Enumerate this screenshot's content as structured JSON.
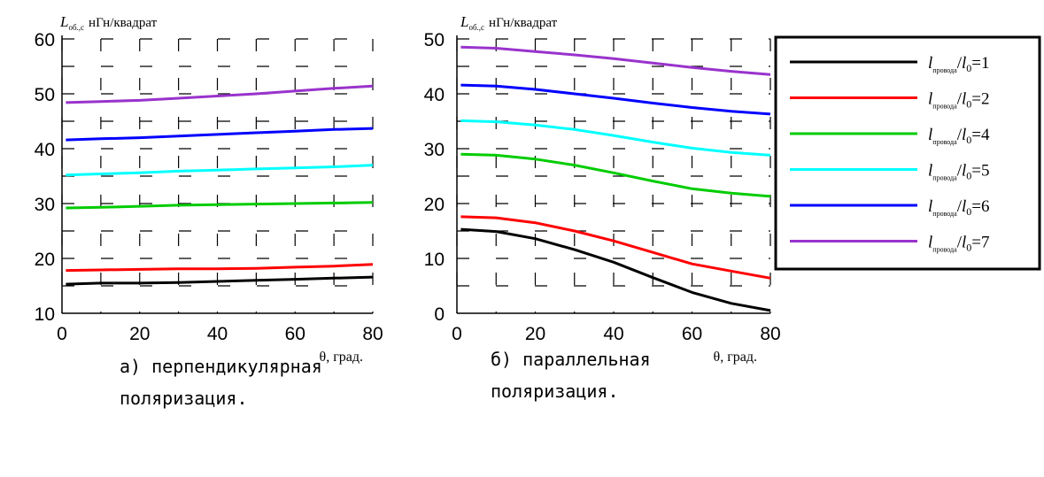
{
  "chart_data": [
    {
      "type": "line",
      "panel_label": "а)",
      "ylabel_symbol": "L",
      "ylabel_subscript": "об.,с",
      "ylabel_units": "нГн/квадрат",
      "xlabel": "θ, град.",
      "xlim": [
        0,
        80
      ],
      "ylim": [
        10,
        60
      ],
      "xticks": [
        "0",
        "20",
        "40",
        "60",
        "80"
      ],
      "yticks": [
        "10",
        "20",
        "30",
        "40",
        "50",
        "60"
      ],
      "grid": true,
      "caption_line1": "а) перпендикулярная",
      "caption_line2": "поляризация.",
      "x": [
        1,
        10,
        20,
        30,
        40,
        50,
        60,
        70,
        80
      ],
      "series": [
        {
          "ratio": "1",
          "color": "#000000",
          "values": [
            15.3,
            15.5,
            15.5,
            15.6,
            15.8,
            16.0,
            16.2,
            16.4,
            16.6
          ]
        },
        {
          "ratio": "2",
          "color": "#ff0000",
          "values": [
            17.8,
            17.9,
            18.0,
            18.1,
            18.1,
            18.2,
            18.4,
            18.6,
            18.9
          ]
        },
        {
          "ratio": "4",
          "color": "#00cc00",
          "values": [
            29.2,
            29.3,
            29.5,
            29.7,
            29.8,
            29.9,
            30.0,
            30.1,
            30.2
          ]
        },
        {
          "ratio": "5",
          "color": "#00ffff",
          "values": [
            35.2,
            35.4,
            35.6,
            35.9,
            36.1,
            36.3,
            36.5,
            36.7,
            37.0
          ]
        },
        {
          "ratio": "6",
          "color": "#0000ff",
          "values": [
            41.6,
            41.8,
            42.0,
            42.3,
            42.6,
            42.9,
            43.2,
            43.5,
            43.7
          ]
        },
        {
          "ratio": "7",
          "color": "#9933cc",
          "values": [
            48.4,
            48.6,
            48.8,
            49.2,
            49.6,
            50.0,
            50.5,
            51.0,
            51.4
          ]
        }
      ]
    },
    {
      "type": "line",
      "panel_label": "б)",
      "ylabel_symbol": "L",
      "ylabel_subscript": "об.,с",
      "ylabel_units": "нГн/квадрат",
      "xlabel": "θ, град.",
      "xlim": [
        0,
        80
      ],
      "ylim": [
        0,
        50
      ],
      "xticks": [
        "0",
        "20",
        "40",
        "60",
        "80"
      ],
      "yticks": [
        "0",
        "10",
        "20",
        "30",
        "40",
        "50"
      ],
      "grid": true,
      "caption_line1": "б) параллельная",
      "caption_line2": "поляризация.",
      "x": [
        1,
        10,
        20,
        30,
        40,
        50,
        60,
        70,
        80
      ],
      "series": [
        {
          "ratio": "1",
          "color": "#000000",
          "values": [
            15.3,
            14.9,
            13.6,
            11.6,
            9.3,
            6.5,
            3.8,
            1.8,
            0.5
          ]
        },
        {
          "ratio": "2",
          "color": "#ff0000",
          "values": [
            17.6,
            17.4,
            16.5,
            15.0,
            13.2,
            11.1,
            9.0,
            7.7,
            6.4
          ]
        },
        {
          "ratio": "4",
          "color": "#00cc00",
          "values": [
            29.0,
            28.8,
            28.1,
            27.0,
            25.6,
            24.1,
            22.7,
            21.9,
            21.3
          ]
        },
        {
          "ratio": "5",
          "color": "#00ffff",
          "values": [
            35.1,
            34.9,
            34.3,
            33.5,
            32.4,
            31.2,
            30.1,
            29.3,
            28.8
          ]
        },
        {
          "ratio": "6",
          "color": "#0000ff",
          "values": [
            41.6,
            41.4,
            40.8,
            40.0,
            39.2,
            38.3,
            37.5,
            36.8,
            36.3
          ]
        },
        {
          "ratio": "7",
          "color": "#9933cc",
          "values": [
            48.5,
            48.3,
            47.7,
            47.1,
            46.4,
            45.6,
            44.8,
            44.1,
            43.5
          ]
        }
      ]
    }
  ],
  "legend": {
    "placement": "right",
    "symbol": "l",
    "symbol_subscript": "провода",
    "divider": "/",
    "ref_symbol": "l",
    "ref_subscript": "0",
    "equals": "="
  }
}
